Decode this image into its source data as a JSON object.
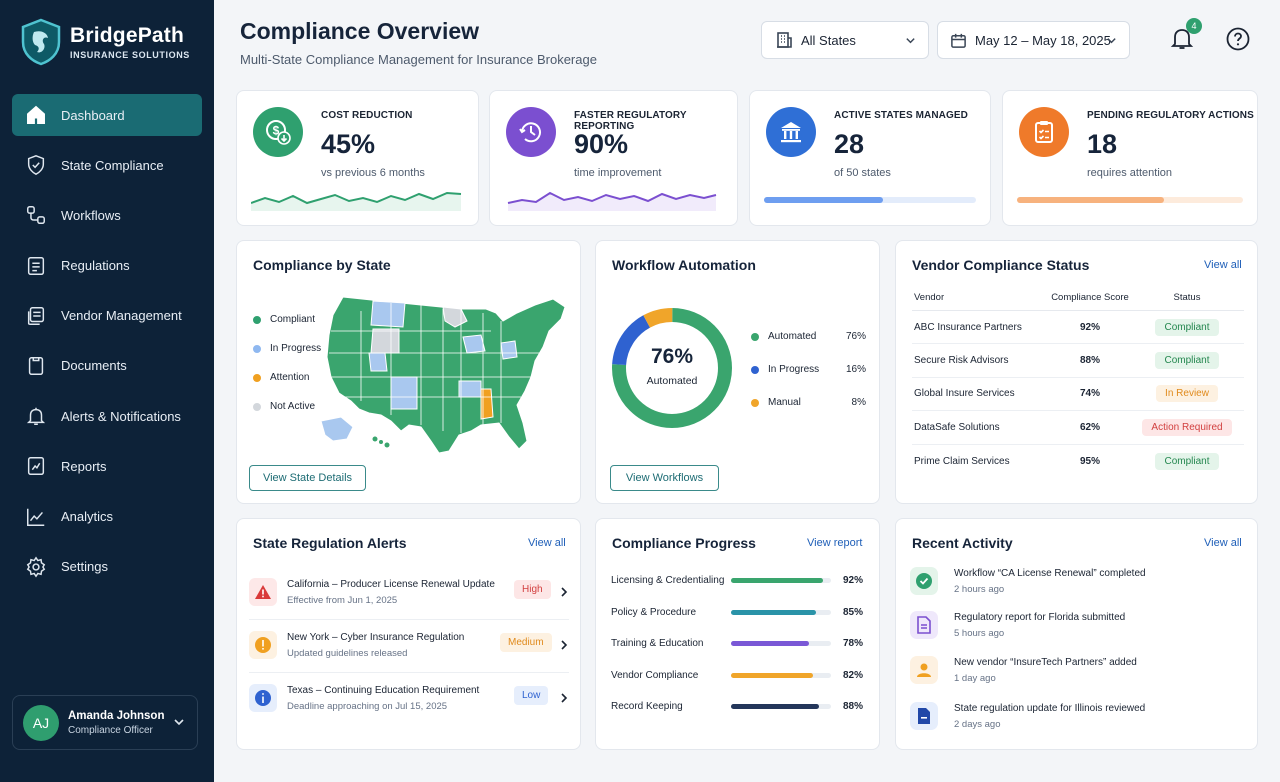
{
  "brand": {
    "name": "BridgePath",
    "sub": "INSURANCE SOLUTIONS"
  },
  "nav": [
    {
      "label": "Dashboard",
      "icon": "home-icon",
      "active": true
    },
    {
      "label": "State Compliance",
      "icon": "shield-check-icon"
    },
    {
      "label": "Workflows",
      "icon": "workflow-icon"
    },
    {
      "label": "Regulations",
      "icon": "document-list-icon"
    },
    {
      "label": "Vendor Management",
      "icon": "folder-icon"
    },
    {
      "label": "Documents",
      "icon": "file-icon"
    },
    {
      "label": "Alerts & Notifications",
      "icon": "bell-icon"
    },
    {
      "label": "Reports",
      "icon": "report-icon"
    },
    {
      "label": "Analytics",
      "icon": "analytics-icon"
    },
    {
      "label": "Settings",
      "icon": "gear-icon"
    }
  ],
  "user": {
    "initials": "AJ",
    "name": "Amanda Johnson",
    "role": "Compliance Officer"
  },
  "header": {
    "title": "Compliance Overview",
    "subtitle": "Multi-State Compliance Management for Insurance Brokerage",
    "state_filter": "All States",
    "date_range": "May 12 – May 18, 2025",
    "notification_count": "4"
  },
  "kpis": [
    {
      "label": "COST REDUCTION",
      "value": "45%",
      "note": "vs previous 6 months",
      "color": "#2fa06f",
      "icon": "dollar-down-icon"
    },
    {
      "label": "FASTER REGULATORY REPORTING",
      "value": "90%",
      "note": "time improvement",
      "color": "#7b4fd0",
      "icon": "clock-icon"
    },
    {
      "label": "ACTIVE STATES MANAGED",
      "value": "28",
      "note": "of 50 states",
      "color": "#2f6fd6",
      "icon": "bank-icon",
      "progress": 0.56
    },
    {
      "label": "PENDING REGULATORY ACTIONS",
      "value": "18",
      "note": "requires attention",
      "color": "#ef7a2a",
      "icon": "clipboard-icon",
      "progress": 0.65
    }
  ],
  "state_card": {
    "title": "Compliance by State",
    "legend": [
      {
        "label": "Compliant",
        "color": "#2fa06f"
      },
      {
        "label": "In Progress",
        "color": "#8fb8f0"
      },
      {
        "label": "Attention",
        "color": "#f0a020"
      },
      {
        "label": "Not Active",
        "color": "#d3d7dc"
      }
    ],
    "button": "View State Details"
  },
  "workflow_card": {
    "title": "Workflow Automation",
    "center_value": "76%",
    "center_label": "Automated",
    "items": [
      {
        "label": "Automated",
        "value": "76%",
        "pct": 76,
        "color": "#3aa56e"
      },
      {
        "label": "In Progress",
        "value": "16%",
        "pct": 16,
        "color": "#2f62d0"
      },
      {
        "label": "Manual",
        "value": "8%",
        "pct": 8,
        "color": "#f0a52a"
      }
    ],
    "button": "View Workflows"
  },
  "vendor_card": {
    "title": "Vendor Compliance Status",
    "view_all": "View all",
    "columns": [
      "Vendor",
      "Compliance Score",
      "Status"
    ],
    "rows": [
      {
        "vendor": "ABC Insurance Partners",
        "score": "92%",
        "status": "Compliant",
        "kind": "ok"
      },
      {
        "vendor": "Secure Risk Advisors",
        "score": "88%",
        "status": "Compliant",
        "kind": "ok"
      },
      {
        "vendor": "Global Insure Services",
        "score": "74%",
        "status": "In Review",
        "kind": "review"
      },
      {
        "vendor": "DataSafe Solutions",
        "score": "62%",
        "status": "Action Required",
        "kind": "action"
      },
      {
        "vendor": "Prime Claim Services",
        "score": "95%",
        "status": "Compliant",
        "kind": "ok"
      }
    ]
  },
  "alerts_card": {
    "title": "State Regulation Alerts",
    "view_all": "View all",
    "items": [
      {
        "title": "California – Producer License Renewal Update",
        "sub": "Effective from Jun 1, 2025",
        "badge": "High",
        "kind": "high"
      },
      {
        "title": "New York – Cyber Insurance Regulation",
        "sub": "Updated guidelines released",
        "badge": "Medium",
        "kind": "medium"
      },
      {
        "title": "Texas – Continuing Education Requirement",
        "sub": "Deadline approaching on Jul 15, 2025",
        "badge": "Low",
        "kind": "low"
      }
    ]
  },
  "progress_card": {
    "title": "Compliance Progress",
    "view_report": "View report",
    "items": [
      {
        "label": "Licensing & Credentialing",
        "value": "92%",
        "pct": 92,
        "color": "#3aa56e"
      },
      {
        "label": "Policy & Procedure",
        "value": "85%",
        "pct": 85,
        "color": "#2a93a8"
      },
      {
        "label": "Training & Education",
        "value": "78%",
        "pct": 78,
        "color": "#7a58d6"
      },
      {
        "label": "Vendor Compliance",
        "value": "82%",
        "pct": 82,
        "color": "#f0a52a"
      },
      {
        "label": "Record Keeping",
        "value": "88%",
        "pct": 88,
        "color": "#23365a"
      }
    ]
  },
  "activity_card": {
    "title": "Recent Activity",
    "view_all": "View all",
    "items": [
      {
        "title": "Workflow “CA License Renewal” completed",
        "time": "2 hours ago",
        "icon": "check-circle-icon"
      },
      {
        "title": "Regulatory report for Florida submitted",
        "time": "5 hours ago",
        "icon": "report-doc-icon"
      },
      {
        "title": "New vendor “InsureTech Partners” added",
        "time": "1 day ago",
        "icon": "user-add-icon"
      },
      {
        "title": "State regulation update for Illinois reviewed",
        "time": "2 days ago",
        "icon": "document-icon"
      }
    ]
  }
}
